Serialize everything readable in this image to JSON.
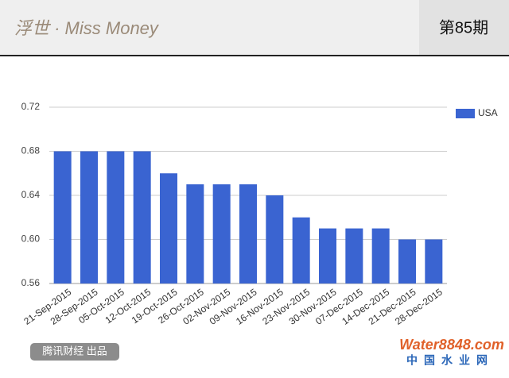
{
  "header": {
    "title": "浮世 · Miss Money",
    "issue": "第85期"
  },
  "footer": {
    "credit": "腾讯财经 出品",
    "watermark": "Water8848.com",
    "watermark_sub": "中国水业网"
  },
  "chart_data": {
    "type": "bar",
    "categories": [
      "21-Sep-2015",
      "28-Sep-2015",
      "05-Oct-2015",
      "12-Oct-2015",
      "19-Oct-2015",
      "26-Oct-2015",
      "02-Nov-2015",
      "09-Nov-2015",
      "16-Nov-2015",
      "23-Nov-2015",
      "30-Nov-2015",
      "07-Dec-2015",
      "14-Dec-2015",
      "21-Dec-2015",
      "28-Dec-2015"
    ],
    "series": [
      {
        "name": "USA",
        "color": "#3a64d1",
        "values": [
          0.68,
          0.68,
          0.68,
          0.68,
          0.66,
          0.65,
          0.65,
          0.65,
          0.64,
          0.62,
          0.61,
          0.61,
          0.61,
          0.6,
          0.6
        ]
      }
    ],
    "ylim": [
      0.56,
      0.72
    ],
    "yticks": [
      0.56,
      {
        "value": 0.6,
        "label": "0.60"
      },
      0.64,
      0.68,
      0.72
    ],
    "grid": true,
    "legend": "right"
  }
}
